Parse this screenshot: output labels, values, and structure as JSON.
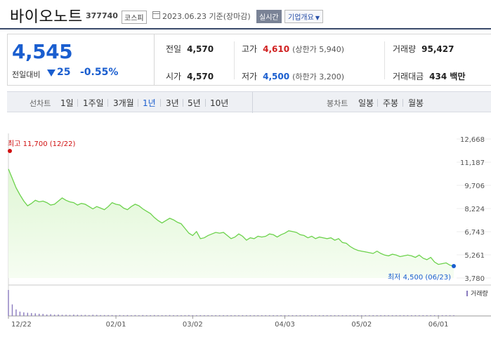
{
  "header": {
    "title": "바이오노트",
    "code": "377740",
    "market": "코스피",
    "date_text": "2023.06.23 기준(장마감)",
    "realtime_label": "실시간",
    "company_label": "기업개요"
  },
  "price": {
    "current": "4,545",
    "change_label": "전일대비",
    "change_amount": "25",
    "change_pct": "-0.55%"
  },
  "stats": {
    "prev_close": {
      "label": "전일",
      "value": "4,570"
    },
    "high": {
      "label": "고가",
      "value": "4,610",
      "sub": "(상한가 5,940)"
    },
    "volume": {
      "label": "거래량",
      "value": "95,427"
    },
    "open": {
      "label": "시가",
      "value": "4,570"
    },
    "low": {
      "label": "저가",
      "value": "4,500",
      "sub": "(하한가 3,200)"
    },
    "amount": {
      "label": "거래대금",
      "value": "434 백만"
    }
  },
  "period": {
    "label": "선차트",
    "items": [
      "1일",
      "1주일",
      "3개월",
      "1년",
      "3년",
      "5년",
      "10년"
    ],
    "active": "1년",
    "candle_label": "봉차트",
    "candle_items": [
      "일봉",
      "주봉",
      "월봉"
    ]
  },
  "colors": {
    "line": "#6cd24c",
    "fill_top": "#dff6d4",
    "fill_bottom": "#f6fdf2",
    "volume": "#8a7bbf",
    "high_marker": "#d01010",
    "low_marker": "#1a5ecf"
  },
  "chart_data": {
    "type": "area",
    "ylim": [
      3780,
      12668
    ],
    "y_ticks": [
      "12,668",
      "11,187",
      "9,706",
      "8,224",
      "6,743",
      "5,261",
      "3,780"
    ],
    "x_tick_labels": [
      "12/22",
      "02/01",
      "03/02",
      "04/03",
      "05/02",
      "06/01"
    ],
    "x_tick_index": [
      0,
      28,
      48,
      72,
      92,
      112
    ],
    "high_label": "최고 11,700 (12/22)",
    "low_label": "최저 4,500 (06/23)",
    "volume_label": "거래량",
    "values": [
      10750,
      10150,
      9550,
      9100,
      8700,
      8400,
      8550,
      8750,
      8650,
      8700,
      8600,
      8450,
      8500,
      8700,
      8900,
      8750,
      8650,
      8600,
      8450,
      8550,
      8500,
      8350,
      8200,
      8350,
      8250,
      8150,
      8350,
      8600,
      8500,
      8450,
      8250,
      8150,
      8350,
      8500,
      8400,
      8200,
      8050,
      7900,
      7650,
      7450,
      7300,
      7450,
      7600,
      7500,
      7350,
      7250,
      6950,
      6650,
      6500,
      6750,
      6300,
      6350,
      6500,
      6600,
      6700,
      6650,
      6700,
      6500,
      6300,
      6400,
      6600,
      6450,
      6200,
      6350,
      6300,
      6450,
      6400,
      6450,
      6600,
      6550,
      6400,
      6550,
      6650,
      6800,
      6750,
      6700,
      6550,
      6500,
      6350,
      6450,
      6300,
      6400,
      6350,
      6300,
      6350,
      6200,
      6300,
      6050,
      6000,
      5800,
      5650,
      5550,
      5500,
      5450,
      5400,
      5350,
      5500,
      5350,
      5250,
      5200,
      5300,
      5250,
      5150,
      5200,
      5250,
      5200,
      5100,
      5250,
      5050,
      4950,
      5100,
      4800,
      4650,
      4700,
      4750,
      4600,
      4545
    ],
    "volumes": [
      180,
      80,
      45,
      30,
      25,
      22,
      20,
      18,
      15,
      14,
      10,
      12,
      9,
      10,
      8,
      8,
      7,
      9,
      8,
      7,
      7,
      6,
      8,
      7,
      6,
      6,
      6,
      6,
      5,
      6,
      5,
      6,
      5,
      6,
      5,
      6,
      5,
      5,
      6,
      5,
      5,
      5,
      6,
      5,
      5,
      4,
      5,
      6,
      5,
      4,
      5,
      5,
      4,
      5,
      5,
      4,
      5,
      4,
      4,
      5,
      4,
      5,
      4,
      4,
      5,
      4,
      4,
      5,
      4,
      4,
      4,
      5,
      4,
      4,
      4,
      4,
      5,
      4,
      4,
      4,
      4,
      4,
      5,
      4,
      4,
      4,
      4,
      4,
      4,
      4,
      5,
      4,
      4,
      4,
      4,
      4,
      4,
      4,
      4,
      4,
      4,
      5,
      4,
      4,
      4,
      4,
      4,
      4,
      4,
      4,
      4,
      4,
      4,
      4,
      4,
      4,
      4
    ]
  }
}
